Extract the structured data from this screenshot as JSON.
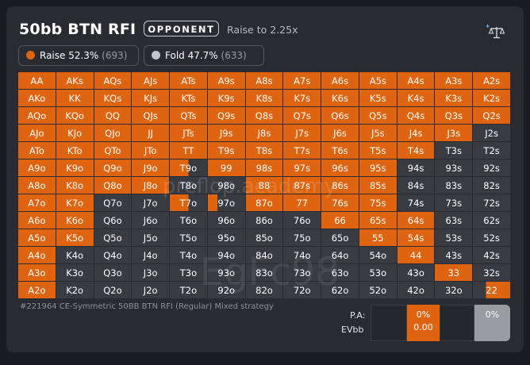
{
  "header": {
    "title": "50bb BTN RFI",
    "opponent_label": "OPPONENT",
    "raise_info": "Raise to 2.25x"
  },
  "legend": {
    "raise": {
      "label": "Raise 52.3%",
      "count": "(693)",
      "color": "#df6410"
    },
    "fold": {
      "label": "Fold 47.7%",
      "count": "(633)",
      "color": "#c4c5c9"
    }
  },
  "watermarks": {
    "site": "preflop.academy",
    "code": "EgFc98"
  },
  "grid": [
    [
      [
        "AA",
        "r"
      ],
      [
        "AKs",
        "r"
      ],
      [
        "AQs",
        "r"
      ],
      [
        "AJs",
        "r"
      ],
      [
        "ATs",
        "r"
      ],
      [
        "A9s",
        "r"
      ],
      [
        "A8s",
        "r"
      ],
      [
        "A7s",
        "r"
      ],
      [
        "A6s",
        "r"
      ],
      [
        "A5s",
        "r"
      ],
      [
        "A4s",
        "r"
      ],
      [
        "A3s",
        "r"
      ],
      [
        "A2s",
        "r"
      ]
    ],
    [
      [
        "AKo",
        "r"
      ],
      [
        "KK",
        "r"
      ],
      [
        "KQs",
        "r"
      ],
      [
        "KJs",
        "r"
      ],
      [
        "KTs",
        "r"
      ],
      [
        "K9s",
        "r"
      ],
      [
        "K8s",
        "r"
      ],
      [
        "K7s",
        "r"
      ],
      [
        "K6s",
        "r"
      ],
      [
        "K5s",
        "r"
      ],
      [
        "K4s",
        "r"
      ],
      [
        "K3s",
        "r"
      ],
      [
        "K2s",
        "r"
      ]
    ],
    [
      [
        "AQo",
        "r"
      ],
      [
        "KQo",
        "r"
      ],
      [
        "QQ",
        "r"
      ],
      [
        "QJs",
        "r"
      ],
      [
        "QTs",
        "r"
      ],
      [
        "Q9s",
        "r"
      ],
      [
        "Q8s",
        "r"
      ],
      [
        "Q7s",
        "r"
      ],
      [
        "Q6s",
        "r"
      ],
      [
        "Q5s",
        "r"
      ],
      [
        "Q4s",
        "r"
      ],
      [
        "Q3s",
        "r"
      ],
      [
        "Q2s",
        "r"
      ]
    ],
    [
      [
        "AJo",
        "r"
      ],
      [
        "KJo",
        "r"
      ],
      [
        "QJo",
        "r"
      ],
      [
        "JJ",
        "r"
      ],
      [
        "JTs",
        "r"
      ],
      [
        "J9s",
        "r"
      ],
      [
        "J8s",
        "r"
      ],
      [
        "J7s",
        "r"
      ],
      [
        "J6s",
        "r"
      ],
      [
        "J5s",
        "r"
      ],
      [
        "J4s",
        "r"
      ],
      [
        "J3s",
        "r"
      ],
      [
        "J2s",
        "f"
      ]
    ],
    [
      [
        "ATo",
        "r"
      ],
      [
        "KTo",
        "r"
      ],
      [
        "QTo",
        "r"
      ],
      [
        "JTo",
        "r"
      ],
      [
        "TT",
        "r"
      ],
      [
        "T9s",
        "r"
      ],
      [
        "T8s",
        "r"
      ],
      [
        "T7s",
        "r"
      ],
      [
        "T6s",
        "r"
      ],
      [
        "T5s",
        "r"
      ],
      [
        "T4s",
        "r"
      ],
      [
        "T3s",
        "f"
      ],
      [
        "T2s",
        "f"
      ]
    ],
    [
      [
        "A9o",
        "r"
      ],
      [
        "K9o",
        "r"
      ],
      [
        "Q9o",
        "r"
      ],
      [
        "J9o",
        "r"
      ],
      [
        "T9o",
        "m"
      ],
      [
        "99",
        "r"
      ],
      [
        "98s",
        "r"
      ],
      [
        "97s",
        "r"
      ],
      [
        "96s",
        "r"
      ],
      [
        "95s",
        "r"
      ],
      [
        "94s",
        "f"
      ],
      [
        "93s",
        "f"
      ],
      [
        "92s",
        "f"
      ]
    ],
    [
      [
        "A8o",
        "r"
      ],
      [
        "K8o",
        "r"
      ],
      [
        "Q8o",
        "r"
      ],
      [
        "J8o",
        "r"
      ],
      [
        "T8o",
        "f"
      ],
      [
        "98o",
        "f"
      ],
      [
        "88",
        "r"
      ],
      [
        "87s",
        "r"
      ],
      [
        "86s",
        "r"
      ],
      [
        "85s",
        "r"
      ],
      [
        "84s",
        "f"
      ],
      [
        "83s",
        "f"
      ],
      [
        "82s",
        "f"
      ]
    ],
    [
      [
        "A7o",
        "r"
      ],
      [
        "K7o",
        "r"
      ],
      [
        "Q7o",
        "f"
      ],
      [
        "J7o",
        "f"
      ],
      [
        "T7o",
        "m"
      ],
      [
        "97o",
        "m-l"
      ],
      [
        "87o",
        "r"
      ],
      [
        "77",
        "r"
      ],
      [
        "76s",
        "r"
      ],
      [
        "75s",
        "r"
      ],
      [
        "74s",
        "f"
      ],
      [
        "73s",
        "f"
      ],
      [
        "72s",
        "f"
      ]
    ],
    [
      [
        "A6o",
        "r"
      ],
      [
        "K6o",
        "r"
      ],
      [
        "Q6o",
        "f"
      ],
      [
        "J6o",
        "f"
      ],
      [
        "T6o",
        "f"
      ],
      [
        "96o",
        "f"
      ],
      [
        "86o",
        "f"
      ],
      [
        "76o",
        "f"
      ],
      [
        "66",
        "r"
      ],
      [
        "65s",
        "r"
      ],
      [
        "64s",
        "r"
      ],
      [
        "63s",
        "f"
      ],
      [
        "62s",
        "f"
      ]
    ],
    [
      [
        "A5o",
        "r"
      ],
      [
        "K5o",
        "r"
      ],
      [
        "Q5o",
        "f"
      ],
      [
        "J5o",
        "f"
      ],
      [
        "T5o",
        "f"
      ],
      [
        "95o",
        "f"
      ],
      [
        "85o",
        "f"
      ],
      [
        "75o",
        "f"
      ],
      [
        "65o",
        "f"
      ],
      [
        "55",
        "r"
      ],
      [
        "54s",
        "r"
      ],
      [
        "53s",
        "f"
      ],
      [
        "52s",
        "f"
      ]
    ],
    [
      [
        "A4o",
        "r"
      ],
      [
        "K4o",
        "f"
      ],
      [
        "Q4o",
        "f"
      ],
      [
        "J4o",
        "f"
      ],
      [
        "T4o",
        "f"
      ],
      [
        "94o",
        "f"
      ],
      [
        "84o",
        "f"
      ],
      [
        "74o",
        "f"
      ],
      [
        "64o",
        "f"
      ],
      [
        "54o",
        "f"
      ],
      [
        "44",
        "r"
      ],
      [
        "43s",
        "f"
      ],
      [
        "42s",
        "f"
      ]
    ],
    [
      [
        "A3o",
        "r"
      ],
      [
        "K3o",
        "f"
      ],
      [
        "Q3o",
        "f"
      ],
      [
        "J3o",
        "f"
      ],
      [
        "T3o",
        "f"
      ],
      [
        "93o",
        "f"
      ],
      [
        "83o",
        "f"
      ],
      [
        "73o",
        "f"
      ],
      [
        "63o",
        "f"
      ],
      [
        "53o",
        "f"
      ],
      [
        "43o",
        "f"
      ],
      [
        "33",
        "r"
      ],
      [
        "32s",
        "f"
      ]
    ],
    [
      [
        "A2o",
        "r"
      ],
      [
        "K2o",
        "f"
      ],
      [
        "Q2o",
        "f"
      ],
      [
        "J2o",
        "f"
      ],
      [
        "T2o",
        "f"
      ],
      [
        "92o",
        "f"
      ],
      [
        "82o",
        "f"
      ],
      [
        "72o",
        "f"
      ],
      [
        "62o",
        "f"
      ],
      [
        "52o",
        "f"
      ],
      [
        "42o",
        "f"
      ],
      [
        "32o",
        "f"
      ],
      [
        "22",
        "m-s"
      ]
    ]
  ],
  "footer": {
    "strategy": "#221964 CE-Symmetric 50BB BTN RFI (Regular) Mixed strategy",
    "pa_label": "P.A:",
    "evbb_label": "EVbb",
    "raise_pa": "0%",
    "raise_ev": "0.00",
    "fold_pa": "0%"
  }
}
